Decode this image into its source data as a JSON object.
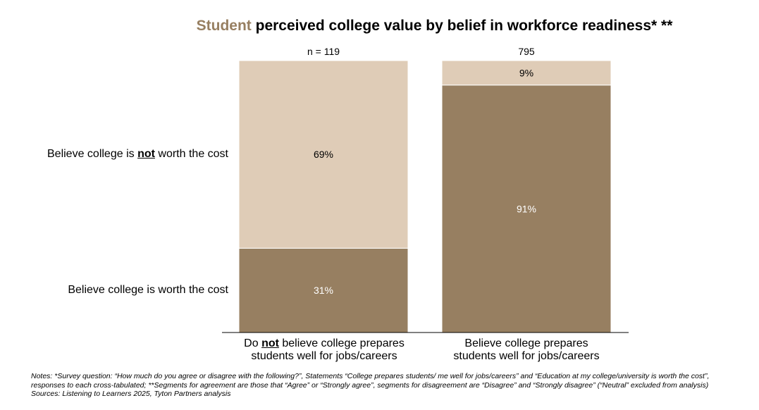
{
  "title": {
    "highlight": "Student",
    "rest": " perceived college value by belief in workforce readiness* **",
    "highlight_color": "#977F61"
  },
  "legend": {
    "not_worth": {
      "pre": "Believe college is ",
      "em": "not",
      "post": " worth the cost"
    },
    "worth": "Believe college is worth the cost"
  },
  "categories": [
    {
      "line1_pre": "Do ",
      "line1_em": "not",
      "line1_post": " believe college prepares",
      "line2": "students well for jobs/careers"
    },
    {
      "line1": "Believe college prepares",
      "line2": "students well for jobs/careers"
    }
  ],
  "chart_data": {
    "type": "bar",
    "stacked": true,
    "normalized": "100%",
    "categories": [
      "Do not believe college prepares students well for jobs/careers",
      "Believe college prepares students well for jobs/careers"
    ],
    "n_labels": [
      "n = 119",
      "795"
    ],
    "n_values": [
      119,
      795
    ],
    "series": [
      {
        "name": "Believe college is worth the cost",
        "values": [
          31,
          91
        ],
        "labels": [
          "31%",
          "91%"
        ],
        "color": "#977F61",
        "label_color": "#ffffff"
      },
      {
        "name": "Believe college is not worth the cost",
        "values": [
          69,
          9
        ],
        "labels": [
          "69%",
          "9%"
        ],
        "color": "#DFCCB7",
        "label_color": "#000000"
      }
    ],
    "ylim": [
      0,
      100
    ],
    "grid": false,
    "legend_placement": "left"
  },
  "notes": {
    "line1": "Notes: *Survey question: “How much do you agree or disagree with the following?”, Statements “College prepares students/ me well for jobs/careers” and “Education at my college/university is worth the cost”,",
    "line2": "responses to each cross-tabulated; **Segments for agreement are those that “Agree” or “Strongly agree”, segments for disagreement are “Disagree” and “Strongly disagree” (“Neutral” excluded from analysis)",
    "line3": "Sources: Listening to Learners 2025, Tyton Partners analysis"
  }
}
